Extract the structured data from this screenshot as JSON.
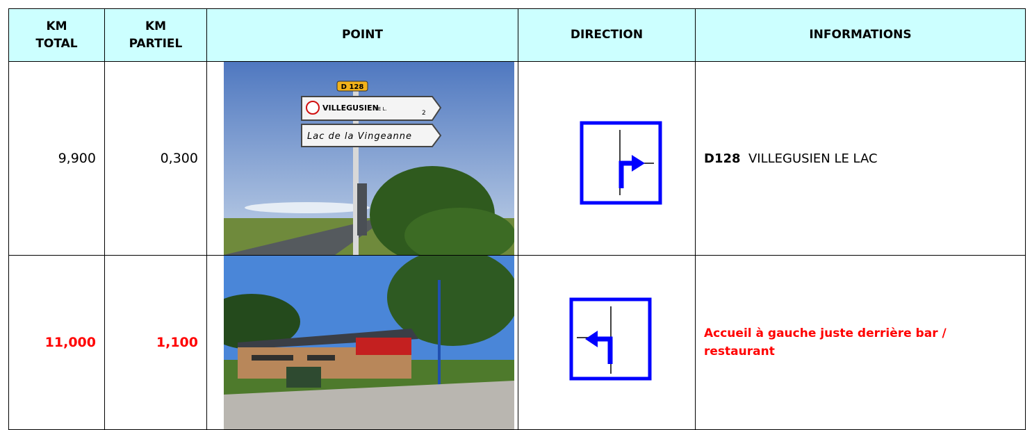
{
  "table": {
    "header": [
      [
        "KM",
        "TOTAL"
      ],
      [
        "KM",
        "PARTIEL"
      ],
      [
        "POINT"
      ],
      [
        "DIRECTION"
      ],
      [
        "INFORMATIONS"
      ]
    ],
    "rows": [
      {
        "km_total": "9,900",
        "km_partiel": "0,300",
        "info_bold": "D128",
        "info": "VILLEGUSIEN LE LAC",
        "sign": [
          "D 128",
          "VILLEGUSIEN",
          "LE L.",
          "2",
          "Lac de la Vingeanne"
        ]
      },
      {
        "km_total": "11,000",
        "km_partiel": "1,100",
        "info": "Accueil à gauche juste derrière bar / restaurant"
      }
    ]
  }
}
